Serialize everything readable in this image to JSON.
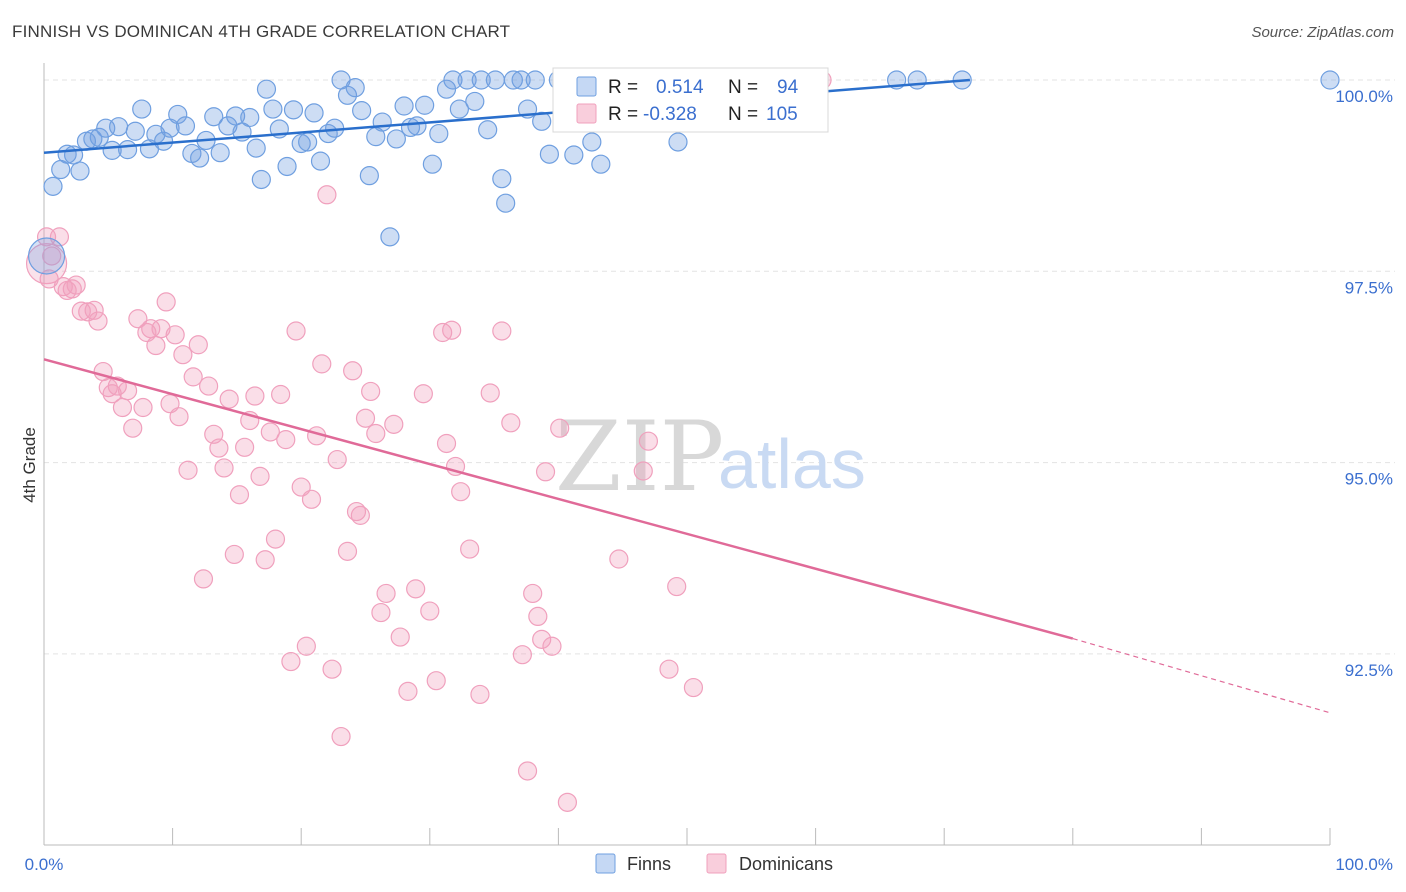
{
  "title": "FINNISH VS DOMINICAN 4TH GRADE CORRELATION CHART",
  "source": "Source: ZipAtlas.com",
  "watermark": {
    "part1": "ZIP",
    "part2": "atlas"
  },
  "colors": {
    "finns": "#6f9fe0",
    "finns_line": "#2a6fcc",
    "dominicans": "#f0a0bd",
    "dominicans_line": "#e06a98",
    "tick_text": "#3b6fcf"
  },
  "legend": {
    "r_label": "R =",
    "n_label": "N =",
    "finns": {
      "r": "0.514",
      "n": "94"
    },
    "dominicans": {
      "r": "-0.328",
      "n": "105"
    }
  },
  "chart_data": {
    "type": "scatter",
    "xlabel": "",
    "ylabel": "4th Grade",
    "x_ticks": [
      "0.0%",
      "100.0%"
    ],
    "y_ticks": [
      "100.0%",
      "97.5%",
      "95.0%",
      "92.5%"
    ],
    "xlim": [
      0,
      100
    ],
    "ylim": [
      90.2,
      100.2
    ],
    "grid": true,
    "series": [
      {
        "name": "Finns",
        "trend": {
          "x": [
            0,
            72
          ],
          "y": [
            99.05,
            100.0
          ]
        },
        "points": [
          [
            0.7,
            98.61
          ],
          [
            1.3,
            98.83
          ],
          [
            1.8,
            99.03
          ],
          [
            2.3,
            99.02
          ],
          [
            2.8,
            98.81
          ],
          [
            3.3,
            99.2
          ],
          [
            3.8,
            99.23
          ],
          [
            4.3,
            99.25
          ],
          [
            4.8,
            99.37
          ],
          [
            5.3,
            99.08
          ],
          [
            5.8,
            99.39
          ],
          [
            6.5,
            99.09
          ],
          [
            7.1,
            99.33
          ],
          [
            7.6,
            99.62
          ],
          [
            8.2,
            99.1
          ],
          [
            8.7,
            99.29
          ],
          [
            9.3,
            99.2
          ],
          [
            9.8,
            99.37
          ],
          [
            10.4,
            99.55
          ],
          [
            11.0,
            99.4
          ],
          [
            11.5,
            99.04
          ],
          [
            12.1,
            98.98
          ],
          [
            12.6,
            99.21
          ],
          [
            13.2,
            99.52
          ],
          [
            13.7,
            99.05
          ],
          [
            14.3,
            99.4
          ],
          [
            14.9,
            99.53
          ],
          [
            15.4,
            99.32
          ],
          [
            16.0,
            99.51
          ],
          [
            16.5,
            99.11
          ],
          [
            16.9,
            98.7
          ],
          [
            17.3,
            99.88
          ],
          [
            17.8,
            99.62
          ],
          [
            18.3,
            99.36
          ],
          [
            18.9,
            98.87
          ],
          [
            19.4,
            99.61
          ],
          [
            20.0,
            99.17
          ],
          [
            20.5,
            99.19
          ],
          [
            21.0,
            99.57
          ],
          [
            21.5,
            98.94
          ],
          [
            22.1,
            99.3
          ],
          [
            22.6,
            99.37
          ],
          [
            23.1,
            100.0
          ],
          [
            23.6,
            99.8
          ],
          [
            24.2,
            99.9
          ],
          [
            24.7,
            99.6
          ],
          [
            25.3,
            98.75
          ],
          [
            25.8,
            99.26
          ],
          [
            26.3,
            99.45
          ],
          [
            26.9,
            97.95
          ],
          [
            27.4,
            99.23
          ],
          [
            28.0,
            99.66
          ],
          [
            28.5,
            99.38
          ],
          [
            29.0,
            99.4
          ],
          [
            29.6,
            99.67
          ],
          [
            30.2,
            98.9
          ],
          [
            30.7,
            99.3
          ],
          [
            31.3,
            99.88
          ],
          [
            31.8,
            100.0
          ],
          [
            32.3,
            99.62
          ],
          [
            32.9,
            100.0
          ],
          [
            33.5,
            99.72
          ],
          [
            34.0,
            100.0
          ],
          [
            34.5,
            99.35
          ],
          [
            35.1,
            100.0
          ],
          [
            35.6,
            98.71
          ],
          [
            35.9,
            98.39
          ],
          [
            36.5,
            100.0
          ],
          [
            37.1,
            100.0
          ],
          [
            37.6,
            99.62
          ],
          [
            38.2,
            100.0
          ],
          [
            38.7,
            99.46
          ],
          [
            39.3,
            99.03
          ],
          [
            40.0,
            100.0
          ],
          [
            40.6,
            100.0
          ],
          [
            41.2,
            99.02
          ],
          [
            41.9,
            100.0
          ],
          [
            42.6,
            99.19
          ],
          [
            43.3,
            98.9
          ],
          [
            44.0,
            100.0
          ],
          [
            45.5,
            100.0
          ],
          [
            47.0,
            100.0
          ],
          [
            48.2,
            100.0
          ],
          [
            49.3,
            99.19
          ],
          [
            50.5,
            100.0
          ],
          [
            51.8,
            100.0
          ],
          [
            53.0,
            100.0
          ],
          [
            54.2,
            100.0
          ],
          [
            55.5,
            100.0
          ],
          [
            56.7,
            100.0
          ],
          [
            66.3,
            100.0
          ],
          [
            67.9,
            100.0
          ],
          [
            71.4,
            100.0
          ],
          [
            100.0,
            100.0
          ]
        ]
      },
      {
        "name": "Dominicans",
        "trend": {
          "x": [
            0,
            80
          ],
          "y": [
            96.35,
            92.7
          ]
        },
        "trend_dashed": {
          "x": [
            80,
            100
          ],
          "y": [
            92.7,
            91.73
          ]
        },
        "points": [
          [
            0.2,
            97.95
          ],
          [
            0.4,
            97.4
          ],
          [
            0.6,
            97.7
          ],
          [
            1.2,
            97.95
          ],
          [
            1.5,
            97.3
          ],
          [
            1.8,
            97.25
          ],
          [
            2.2,
            97.27
          ],
          [
            2.5,
            97.32
          ],
          [
            2.9,
            96.98
          ],
          [
            3.4,
            96.97
          ],
          [
            3.9,
            96.99
          ],
          [
            4.2,
            96.85
          ],
          [
            4.6,
            96.19
          ],
          [
            5.0,
            95.98
          ],
          [
            5.3,
            95.9
          ],
          [
            5.7,
            96.0
          ],
          [
            6.1,
            95.72
          ],
          [
            6.5,
            95.94
          ],
          [
            6.9,
            95.45
          ],
          [
            7.3,
            96.88
          ],
          [
            7.7,
            95.72
          ],
          [
            8.0,
            96.7
          ],
          [
            8.3,
            96.75
          ],
          [
            8.7,
            96.53
          ],
          [
            9.1,
            96.75
          ],
          [
            9.5,
            97.1
          ],
          [
            9.8,
            95.77
          ],
          [
            10.2,
            96.67
          ],
          [
            10.5,
            95.6
          ],
          [
            10.8,
            96.41
          ],
          [
            11.2,
            94.9
          ],
          [
            11.6,
            96.12
          ],
          [
            12.0,
            96.54
          ],
          [
            12.4,
            93.48
          ],
          [
            12.8,
            96.0
          ],
          [
            13.2,
            95.37
          ],
          [
            13.6,
            95.19
          ],
          [
            14.0,
            94.93
          ],
          [
            14.4,
            95.83
          ],
          [
            14.8,
            93.8
          ],
          [
            15.2,
            94.58
          ],
          [
            15.6,
            95.2
          ],
          [
            16.0,
            95.55
          ],
          [
            16.4,
            95.87
          ],
          [
            16.8,
            94.82
          ],
          [
            17.2,
            93.73
          ],
          [
            17.6,
            95.4
          ],
          [
            18.0,
            94.0
          ],
          [
            18.4,
            95.89
          ],
          [
            18.8,
            95.3
          ],
          [
            19.2,
            92.4
          ],
          [
            19.6,
            96.72
          ],
          [
            20.0,
            94.68
          ],
          [
            20.4,
            92.6
          ],
          [
            20.8,
            94.52
          ],
          [
            21.2,
            95.35
          ],
          [
            21.6,
            96.29
          ],
          [
            22.0,
            98.5
          ],
          [
            22.4,
            92.3
          ],
          [
            22.8,
            95.04
          ],
          [
            23.1,
            91.42
          ],
          [
            23.6,
            93.84
          ],
          [
            24.0,
            96.2
          ],
          [
            24.3,
            94.36
          ],
          [
            24.6,
            94.31
          ],
          [
            25.0,
            95.58
          ],
          [
            25.4,
            95.93
          ],
          [
            25.8,
            95.38
          ],
          [
            26.2,
            93.04
          ],
          [
            26.6,
            93.29
          ],
          [
            27.2,
            95.5
          ],
          [
            27.7,
            92.72
          ],
          [
            28.3,
            92.01
          ],
          [
            28.9,
            93.35
          ],
          [
            29.5,
            95.9
          ],
          [
            30.0,
            93.06
          ],
          [
            30.5,
            92.15
          ],
          [
            31.0,
            96.7
          ],
          [
            31.3,
            95.25
          ],
          [
            31.7,
            96.73
          ],
          [
            32.0,
            94.95
          ],
          [
            32.4,
            94.62
          ],
          [
            33.1,
            93.87
          ],
          [
            33.9,
            91.97
          ],
          [
            34.7,
            95.91
          ],
          [
            35.6,
            96.72
          ],
          [
            36.3,
            95.52
          ],
          [
            37.2,
            92.49
          ],
          [
            37.6,
            90.97
          ],
          [
            38.0,
            93.29
          ],
          [
            38.4,
            92.99
          ],
          [
            38.7,
            92.69
          ],
          [
            39.0,
            94.88
          ],
          [
            39.5,
            92.6
          ],
          [
            40.1,
            95.45
          ],
          [
            40.7,
            90.56
          ],
          [
            44.7,
            93.74
          ],
          [
            46.6,
            94.89
          ],
          [
            47.0,
            95.28
          ],
          [
            48.6,
            92.3
          ],
          [
            49.2,
            93.38
          ],
          [
            50.5,
            92.06
          ],
          [
            52.0,
            100.0
          ],
          [
            57.2,
            100.0
          ],
          [
            60.5,
            100.0
          ]
        ]
      }
    ]
  },
  "bottom_legend": {
    "finns": "Finns",
    "dominicans": "Dominicans"
  }
}
